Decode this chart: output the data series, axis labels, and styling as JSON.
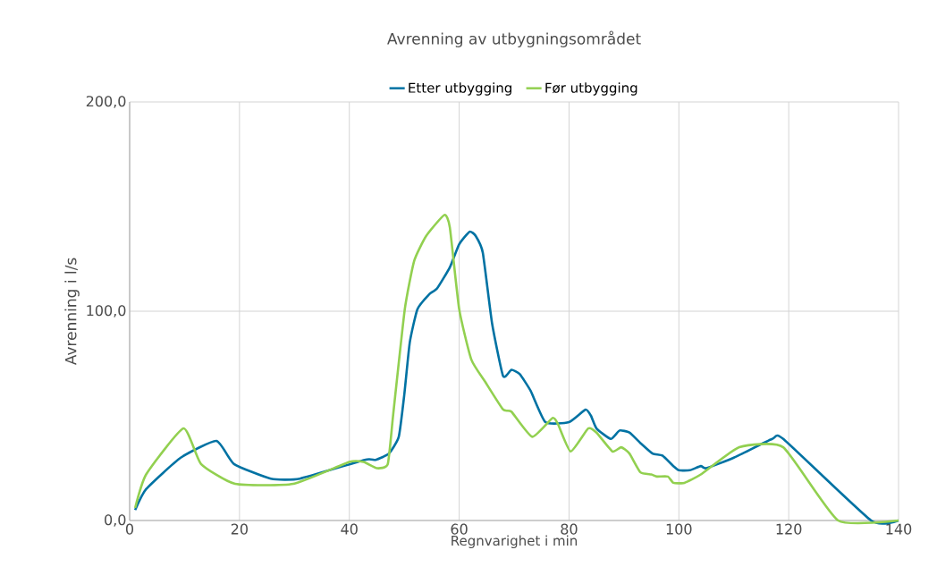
{
  "chart_data": {
    "type": "line",
    "title": "Avrenning av utbygningsområdet",
    "xlabel": "Regnvarighet i min",
    "ylabel": "Avrenning i l/s",
    "xlim": [
      0,
      140
    ],
    "xticks": [
      0,
      20,
      40,
      60,
      80,
      100,
      120,
      140
    ],
    "ylim": [
      0,
      200
    ],
    "yticks": [
      {
        "value": 0,
        "label": "0,0"
      },
      {
        "value": 100,
        "label": "100,0"
      },
      {
        "value": 200,
        "label": "200,0"
      }
    ],
    "grid": true,
    "legend": "top",
    "marker": "none",
    "line_style": "solid",
    "series": [
      {
        "name": "Etter utbygging",
        "color": "#0072a3",
        "x": [
          1,
          3,
          9.3,
          15.8,
          19,
          25.7,
          31,
          42.8,
          44.8,
          47.2,
          49,
          50,
          51,
          52.4,
          54.5,
          56,
          58.3,
          60,
          61.9,
          63,
          64.3,
          66,
          68,
          69.5,
          71,
          73,
          75.7,
          80,
          83,
          84,
          85,
          87.6,
          89.2,
          91,
          93,
          95.2,
          97,
          99,
          100,
          102,
          104,
          105,
          110,
          117,
          119,
          135,
          140
        ],
        "values": [
          5,
          15,
          30,
          38,
          27,
          20,
          20,
          29,
          29,
          32,
          40,
          60,
          85,
          101,
          108,
          111,
          121,
          132,
          138,
          136,
          128,
          94,
          69,
          72,
          70,
          62,
          47,
          47,
          53,
          50,
          44,
          39,
          43,
          42,
          37,
          32,
          31,
          26,
          24,
          24,
          26,
          25,
          30,
          39,
          39,
          0,
          0
        ]
      },
      {
        "name": "Før utbygging",
        "color": "#92d050",
        "x": [
          1,
          3,
          9.8,
          13,
          19.2,
          29.8,
          40,
          42.6,
          45,
          47,
          48,
          50.1,
          51.8,
          54,
          57.3,
          58.3,
          60,
          62.2,
          64.8,
          68,
          69.5,
          73.3,
          77,
          78,
          80.3,
          83.5,
          85,
          87.9,
          89.5,
          91,
          93,
          95,
          96,
          98,
          99,
          101,
          104,
          111,
          119,
          129,
          140
        ],
        "values": [
          6,
          22,
          44,
          27,
          17.5,
          17.5,
          28,
          28,
          25,
          27,
          51,
          101,
          124,
          136,
          146,
          140,
          101,
          77,
          66,
          53,
          52,
          40,
          49,
          46,
          33,
          44,
          42,
          33,
          35,
          32,
          23,
          22,
          21,
          21,
          18,
          18,
          22,
          35,
          35,
          0,
          0
        ]
      }
    ]
  }
}
